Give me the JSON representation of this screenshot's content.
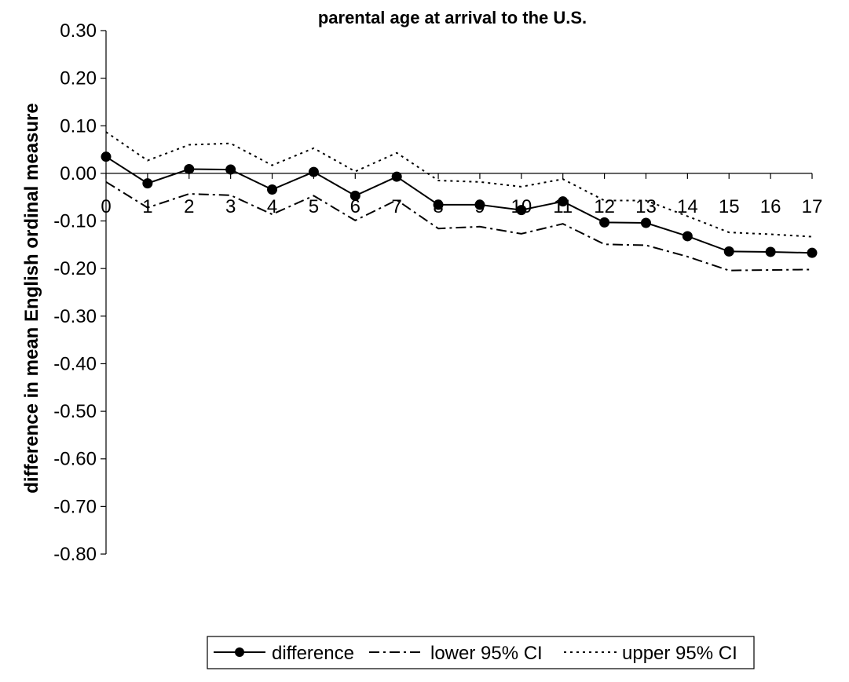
{
  "chart_data": {
    "type": "line",
    "title": "parental age at arrival to the U.S.",
    "xlabel": "",
    "ylabel": "difference in mean English ordinal measure",
    "ylim": [
      -0.8,
      0.3
    ],
    "y_ticks": [
      "0.30",
      "0.20",
      "0.10",
      "0.00",
      "-0.10",
      "-0.20",
      "-0.30",
      "-0.40",
      "-0.50",
      "-0.60",
      "-0.70",
      "-0.80"
    ],
    "x": [
      0,
      1,
      2,
      3,
      4,
      5,
      6,
      7,
      8,
      9,
      10,
      11,
      12,
      13,
      14,
      15,
      16,
      17
    ],
    "x_tick_labels": [
      "0",
      "1",
      "2",
      "3",
      "4",
      "5",
      "6",
      "7",
      "8",
      "9",
      "10",
      "11",
      "12",
      "13",
      "14",
      "15",
      "16",
      "17"
    ],
    "series": [
      {
        "name": "difference",
        "style": "solid-with-markers",
        "color": "#000000",
        "values": [
          0.035,
          -0.021,
          0.009,
          0.008,
          -0.034,
          0.003,
          -0.047,
          -0.007,
          -0.066,
          -0.066,
          -0.077,
          -0.059,
          -0.103,
          -0.104,
          -0.132,
          -0.164,
          -0.165,
          -0.167
        ]
      },
      {
        "name": "lower 95% CI",
        "style": "dash-dot",
        "color": "#000000",
        "values": [
          -0.018,
          -0.072,
          -0.043,
          -0.046,
          -0.086,
          -0.047,
          -0.099,
          -0.056,
          -0.116,
          -0.112,
          -0.127,
          -0.106,
          -0.149,
          -0.151,
          -0.175,
          -0.204,
          -0.203,
          -0.202
        ]
      },
      {
        "name": "upper 95% CI",
        "style": "dotted",
        "color": "#000000",
        "values": [
          0.087,
          0.027,
          0.06,
          0.063,
          0.017,
          0.053,
          0.004,
          0.043,
          -0.015,
          -0.018,
          -0.028,
          -0.012,
          -0.057,
          -0.057,
          -0.09,
          -0.124,
          -0.128,
          -0.133
        ]
      }
    ],
    "grid": false,
    "legend_position": "bottom"
  }
}
